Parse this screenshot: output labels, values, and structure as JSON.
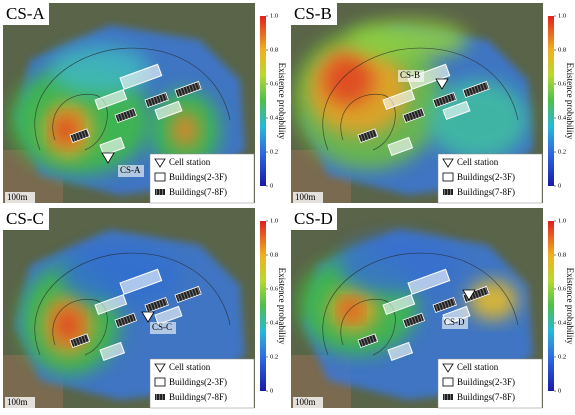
{
  "panels": [
    {
      "title": "CS-A",
      "station_label": "CS-A"
    },
    {
      "title": "CS-B",
      "station_label": "CS-B"
    },
    {
      "title": "CS-C",
      "station_label": "CS-C"
    },
    {
      "title": "CS-D",
      "station_label": "CS-D"
    }
  ],
  "colorbar": {
    "label": "Existence probability",
    "lim": [
      0,
      1
    ],
    "ticks": [
      0,
      0.2,
      0.4,
      0.6,
      0.8,
      {
        "value": 1,
        "label": "1.0"
      }
    ]
  },
  "legend": [
    "Cell station",
    "Buildings(2-3F)",
    "Buildings(7-8F)"
  ],
  "scale_label": "100m"
}
